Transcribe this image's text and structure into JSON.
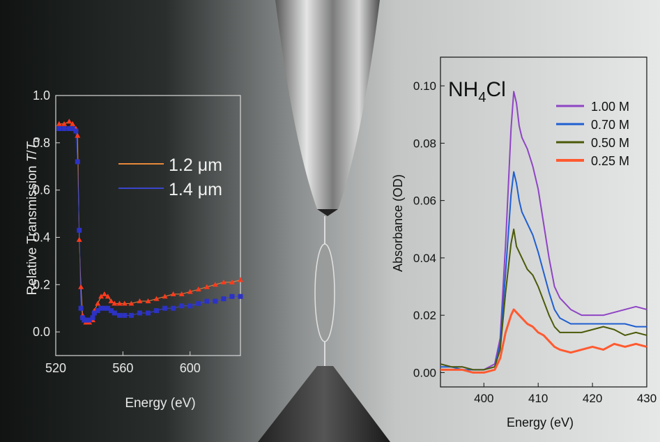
{
  "chart_data": [
    {
      "type": "scatter",
      "xlabel": "Energy (eV)",
      "ylabel_prefix": "Relative Transmission ",
      "ylabel_T": "T",
      "ylabel_slash": "/",
      "ylabel_T0": "T",
      "ylabel_T0_sub": "0",
      "xlim": [
        520,
        630
      ],
      "ylim": [
        -0.1,
        1.0
      ],
      "x_ticks": [
        "520",
        "560",
        "600"
      ],
      "y_ticks": [
        "0.0",
        "0.2",
        "0.4",
        "0.6",
        "0.8",
        "1.0"
      ],
      "x_tick_values": [
        520,
        560,
        600
      ],
      "y_tick_values": [
        0.0,
        0.2,
        0.4,
        0.6,
        0.8,
        1.0
      ],
      "series": [
        {
          "name": "1.2 μm",
          "color": "#ff3a1e",
          "fit_color": "#e8883a",
          "marker": "triangle",
          "x": [
            522,
            525,
            528,
            530,
            532,
            533,
            534,
            535,
            536,
            537,
            538,
            540,
            542,
            543,
            545,
            547,
            549,
            551,
            553,
            555,
            558,
            561,
            565,
            570,
            575,
            580,
            585,
            590,
            595,
            600,
            605,
            610,
            615,
            620,
            625,
            630
          ],
          "y": [
            0.88,
            0.88,
            0.89,
            0.88,
            0.86,
            0.83,
            0.39,
            0.19,
            0.07,
            0.05,
            0.04,
            0.04,
            0.05,
            0.09,
            0.12,
            0.15,
            0.16,
            0.15,
            0.13,
            0.12,
            0.12,
            0.12,
            0.12,
            0.13,
            0.13,
            0.14,
            0.15,
            0.16,
            0.16,
            0.17,
            0.18,
            0.19,
            0.2,
            0.21,
            0.21,
            0.22
          ]
        },
        {
          "name": "1.4 μm",
          "color": "#2c32c4",
          "fit_color": "#3a46cc",
          "marker": "square",
          "x": [
            522,
            525,
            528,
            530,
            532,
            533,
            534,
            535,
            536,
            537,
            538,
            540,
            542,
            543,
            545,
            547,
            549,
            551,
            553,
            555,
            558,
            561,
            565,
            570,
            575,
            580,
            585,
            590,
            595,
            600,
            605,
            610,
            615,
            620,
            625,
            630
          ],
          "y": [
            0.86,
            0.86,
            0.86,
            0.86,
            0.85,
            0.72,
            0.43,
            0.1,
            0.06,
            0.05,
            0.05,
            0.05,
            0.06,
            0.08,
            0.09,
            0.1,
            0.1,
            0.1,
            0.09,
            0.08,
            0.07,
            0.07,
            0.07,
            0.08,
            0.08,
            0.09,
            0.1,
            0.1,
            0.11,
            0.11,
            0.12,
            0.13,
            0.13,
            0.14,
            0.15,
            0.15
          ]
        }
      ]
    },
    {
      "type": "line",
      "title_main": "NH",
      "title_sub": "4",
      "title_tail": "Cl",
      "xlabel": "Energy (eV)",
      "ylabel": "Absorbance (OD)",
      "xlim": [
        392,
        430
      ],
      "ylim": [
        -0.005,
        0.11
      ],
      "x_ticks": [
        "400",
        "410",
        "420",
        "430"
      ],
      "y_ticks": [
        "0.00",
        "0.02",
        "0.04",
        "0.06",
        "0.08",
        "0.10"
      ],
      "x_tick_values": [
        400,
        410,
        420,
        430
      ],
      "y_tick_values": [
        0.0,
        0.02,
        0.04,
        0.06,
        0.08,
        0.1
      ],
      "x": [
        392,
        394,
        396,
        398,
        400,
        402,
        403,
        404,
        405,
        405.5,
        406,
        406.5,
        407,
        408,
        409,
        410,
        411,
        412,
        413,
        414,
        416,
        418,
        420,
        422,
        424,
        426,
        428,
        430
      ],
      "series": [
        {
          "name": "1.00 M",
          "color": "#8e44c4",
          "values": [
            0.003,
            0.002,
            0.002,
            0.001,
            0.001,
            0.003,
            0.012,
            0.045,
            0.085,
            0.098,
            0.094,
            0.086,
            0.082,
            0.078,
            0.072,
            0.064,
            0.052,
            0.04,
            0.03,
            0.026,
            0.022,
            0.02,
            0.02,
            0.02,
            0.021,
            0.022,
            0.023,
            0.022
          ]
        },
        {
          "name": "0.70 M",
          "color": "#1f5fd0",
          "values": [
            0.002,
            0.002,
            0.001,
            0.001,
            0.001,
            0.002,
            0.01,
            0.035,
            0.062,
            0.07,
            0.066,
            0.06,
            0.056,
            0.052,
            0.048,
            0.042,
            0.035,
            0.028,
            0.022,
            0.019,
            0.017,
            0.017,
            0.017,
            0.017,
            0.017,
            0.017,
            0.016,
            0.016
          ]
        },
        {
          "name": "0.50 M",
          "color": "#4a5a08",
          "values": [
            0.003,
            0.002,
            0.002,
            0.001,
            0.001,
            0.002,
            0.008,
            0.028,
            0.045,
            0.05,
            0.044,
            0.042,
            0.04,
            0.036,
            0.034,
            0.03,
            0.025,
            0.02,
            0.016,
            0.014,
            0.014,
            0.014,
            0.015,
            0.016,
            0.015,
            0.013,
            0.014,
            0.013
          ]
        },
        {
          "name": "0.25 M",
          "color": "#ff5a30",
          "values": [
            0.001,
            0.001,
            0.001,
            0.0,
            0.0,
            0.001,
            0.005,
            0.014,
            0.02,
            0.022,
            0.021,
            0.02,
            0.019,
            0.017,
            0.016,
            0.014,
            0.013,
            0.011,
            0.009,
            0.008,
            0.007,
            0.008,
            0.009,
            0.008,
            0.01,
            0.009,
            0.01,
            0.009
          ]
        }
      ]
    }
  ]
}
